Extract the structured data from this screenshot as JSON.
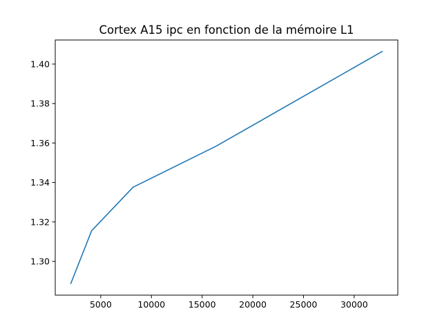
{
  "chart_data": {
    "type": "line",
    "title": "Cortex A15 ipc en fonction de la mémoire L1",
    "xlabel": "",
    "ylabel": "",
    "xlim": [
      512,
      34304
    ],
    "ylim": [
      1.2829,
      1.4122
    ],
    "x_ticks": [
      5000,
      10000,
      15000,
      20000,
      25000,
      30000
    ],
    "x_tick_labels": [
      "5000",
      "10000",
      "15000",
      "20000",
      "25000",
      "30000"
    ],
    "y_ticks": [
      1.3,
      1.32,
      1.34,
      1.36,
      1.38,
      1.4
    ],
    "y_tick_labels": [
      "1.30",
      "1.32",
      "1.34",
      "1.36",
      "1.38",
      "1.40"
    ],
    "grid": false,
    "series": [
      {
        "color": "#1f77b4",
        "x": [
          2048,
          4096,
          8192,
          16384,
          32768
        ],
        "y": [
          1.2888,
          1.3155,
          1.3376,
          1.3584,
          1.4064
        ]
      }
    ]
  }
}
